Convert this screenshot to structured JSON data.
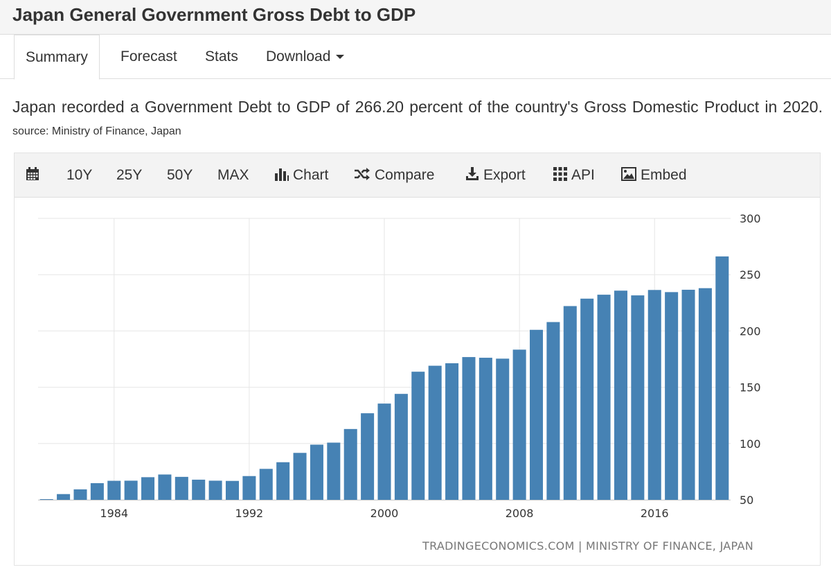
{
  "header": {
    "title": "Japan General Government Gross Debt to GDP"
  },
  "tabs": [
    {
      "label": "Summary",
      "active": true
    },
    {
      "label": "Forecast"
    },
    {
      "label": "Stats"
    },
    {
      "label": "Download"
    }
  ],
  "description": {
    "text": "Japan recorded a Government Debt to GDP of 266.20 percent of the country's Gross Domestic Product in 2020.",
    "source": "source: Ministry of Finance, Japan"
  },
  "toolbar": {
    "range_10y": "10Y",
    "range_25y": "25Y",
    "range_50y": "50Y",
    "range_max": "MAX",
    "chart": "Chart",
    "compare": "Compare",
    "export": "Export",
    "api": "API",
    "embed": "Embed"
  },
  "chart_data": {
    "type": "bar",
    "title": "",
    "xlabel": "",
    "ylabel": "",
    "color": "#4682b4",
    "ylim": [
      50,
      300
    ],
    "yticks": [
      50,
      100,
      150,
      200,
      250,
      300
    ],
    "xtick_labels": [
      1984,
      1992,
      2000,
      2008,
      2016
    ],
    "grid": true,
    "credit": "TRADINGECONOMICS.COM | MINISTRY OF FINANCE, JAPAN",
    "x": [
      1980,
      1981,
      1982,
      1983,
      1984,
      1985,
      1986,
      1987,
      1988,
      1989,
      1990,
      1991,
      1992,
      1993,
      1994,
      1995,
      1996,
      1997,
      1998,
      1999,
      2000,
      2001,
      2002,
      2003,
      2004,
      2005,
      2006,
      2007,
      2008,
      2009,
      2010,
      2011,
      2012,
      2013,
      2014,
      2015,
      2016,
      2017,
      2018,
      2019,
      2020
    ],
    "values": [
      50.6,
      55.1,
      59.3,
      64.8,
      66.9,
      67.0,
      70.1,
      72.5,
      70.4,
      67.9,
      67.0,
      66.8,
      71.1,
      77.5,
      83.4,
      91.7,
      99.0,
      100.8,
      112.9,
      126.9,
      135.5,
      144.1,
      163.8,
      169.1,
      171.3,
      176.8,
      176.2,
      175.4,
      183.4,
      201.0,
      207.9,
      222.1,
      228.7,
      232.2,
      235.8,
      231.6,
      236.4,
      234.5,
      236.6,
      238.0,
      266.2
    ]
  }
}
